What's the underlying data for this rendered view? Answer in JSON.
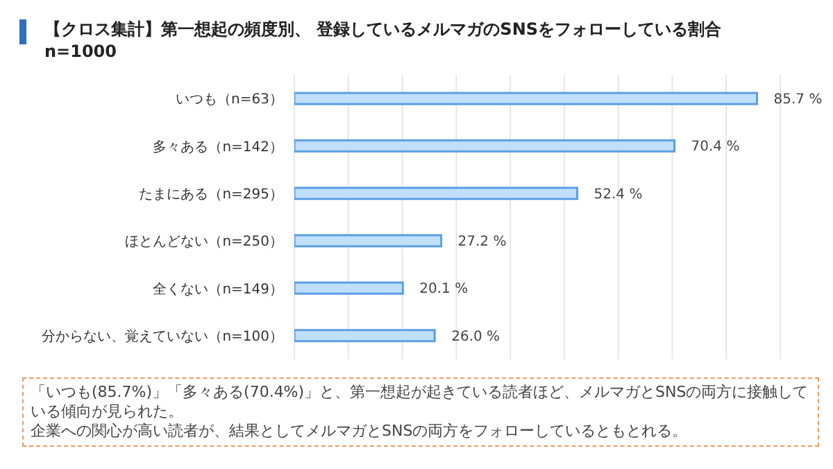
{
  "chart_data": {
    "type": "bar",
    "orientation": "horizontal",
    "title": "【クロス集計】第一想起の頻度別、 登録しているメルマガのSNSをフォローしている割合",
    "subtitle": "n=1000",
    "categories": [
      "いつも（n=63）",
      "多々ある（n=142）",
      "たまにある（n=295）",
      "ほとんどない（n=250）",
      "全くない（n=149）",
      "分からない、覚えていない（n=100）"
    ],
    "values": [
      85.7,
      70.4,
      52.4,
      27.2,
      20.1,
      26.0
    ],
    "value_labels": [
      "85.7 %",
      "70.4 %",
      "52.4 %",
      "27.2 %",
      "20.1 %",
      "26.0 %"
    ],
    "color": "#bfdffc",
    "tick_labels": "y",
    "grid": "x",
    "legend": false,
    "annotations": [
      "「いつも(85.7%)」「多々ある(70.4%)」と、第一想起が起きている読者ほど、メルマガとSNSの両方に接触している傾向が見られた。",
      "企業への関心が高い読者が、結果としてメルマガとSNSの両方をフォローしているともとれる。"
    ]
  }
}
